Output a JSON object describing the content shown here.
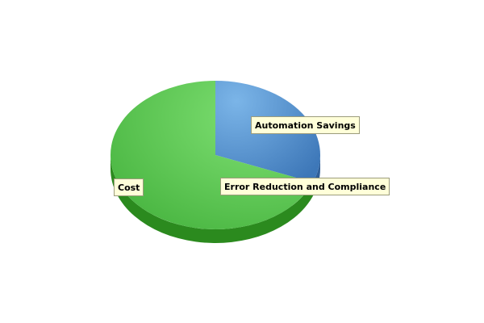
{
  "chart_data": {
    "type": "pie",
    "style": "3d",
    "title": "",
    "slices": [
      {
        "label": "Automation Savings",
        "value": 31,
        "color": "#4a86c8",
        "side_color": "#2f5f99"
      },
      {
        "label": "Error Reduction and Compliance",
        "value": 0,
        "color": "#3f8fc6",
        "side_color": "#2f5f99"
      },
      {
        "label": "Cost",
        "value": 69,
        "color": "#5cc552",
        "side_color": "#2b8a1e"
      }
    ],
    "legend": "none"
  }
}
